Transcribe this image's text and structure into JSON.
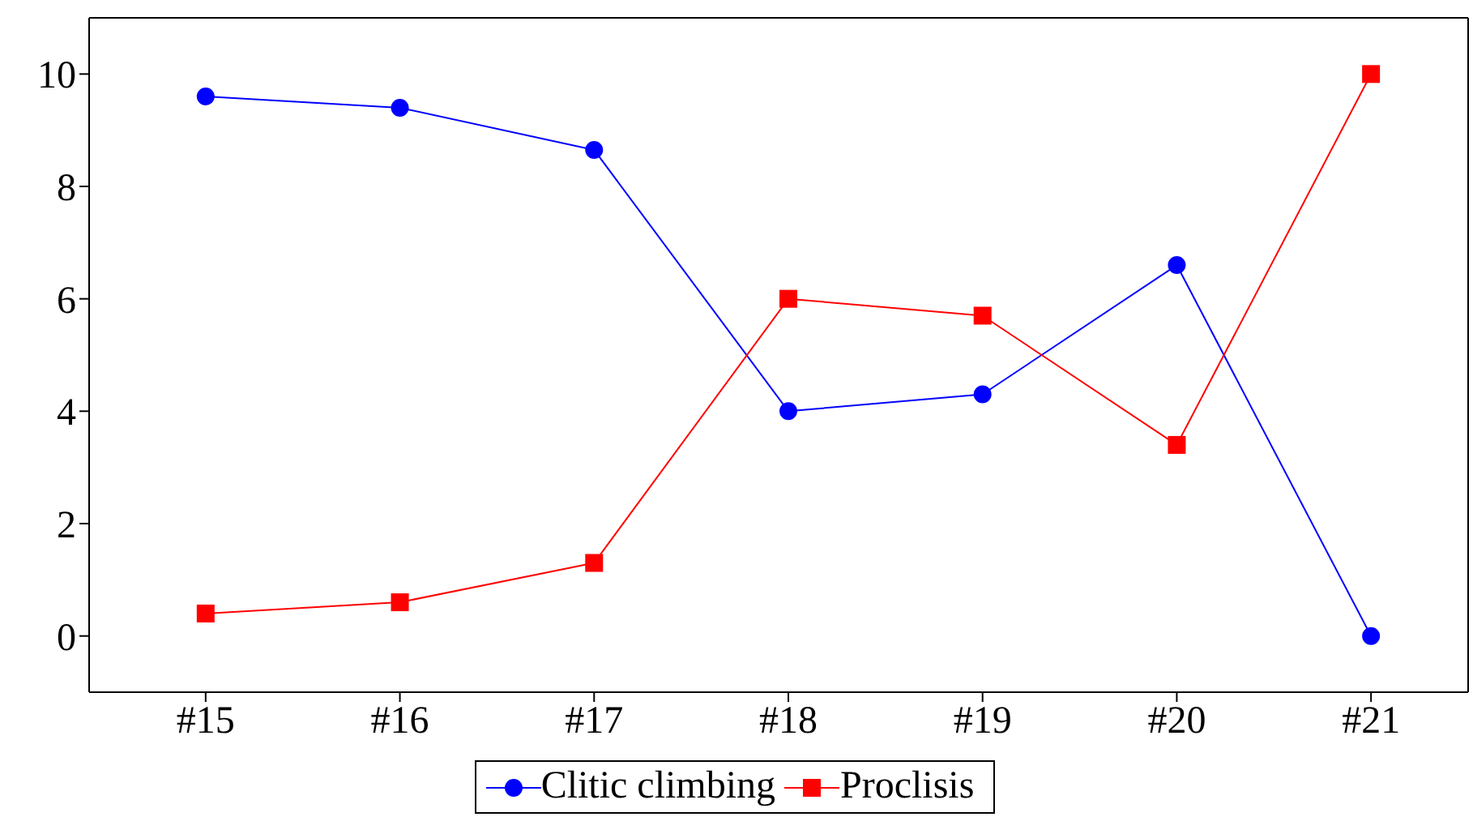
{
  "chart_data": {
    "type": "line",
    "categories": [
      "#15",
      "#16",
      "#17",
      "#18",
      "#19",
      "#20",
      "#21"
    ],
    "series": [
      {
        "name": "Clitic climbing",
        "color": "#0000ff",
        "marker": "circle",
        "values": [
          9.6,
          9.4,
          8.65,
          4,
          4.3,
          6.6,
          0
        ]
      },
      {
        "name": "Proclisis",
        "color": "#ff0000",
        "marker": "square",
        "values": [
          0.4,
          0.6,
          1.3,
          6,
          5.7,
          3.4,
          10
        ]
      }
    ],
    "ylim": [
      -1,
      11
    ],
    "yticks": [
      0,
      2,
      4,
      6,
      8,
      10
    ],
    "grid": false,
    "legend": "bottom"
  }
}
